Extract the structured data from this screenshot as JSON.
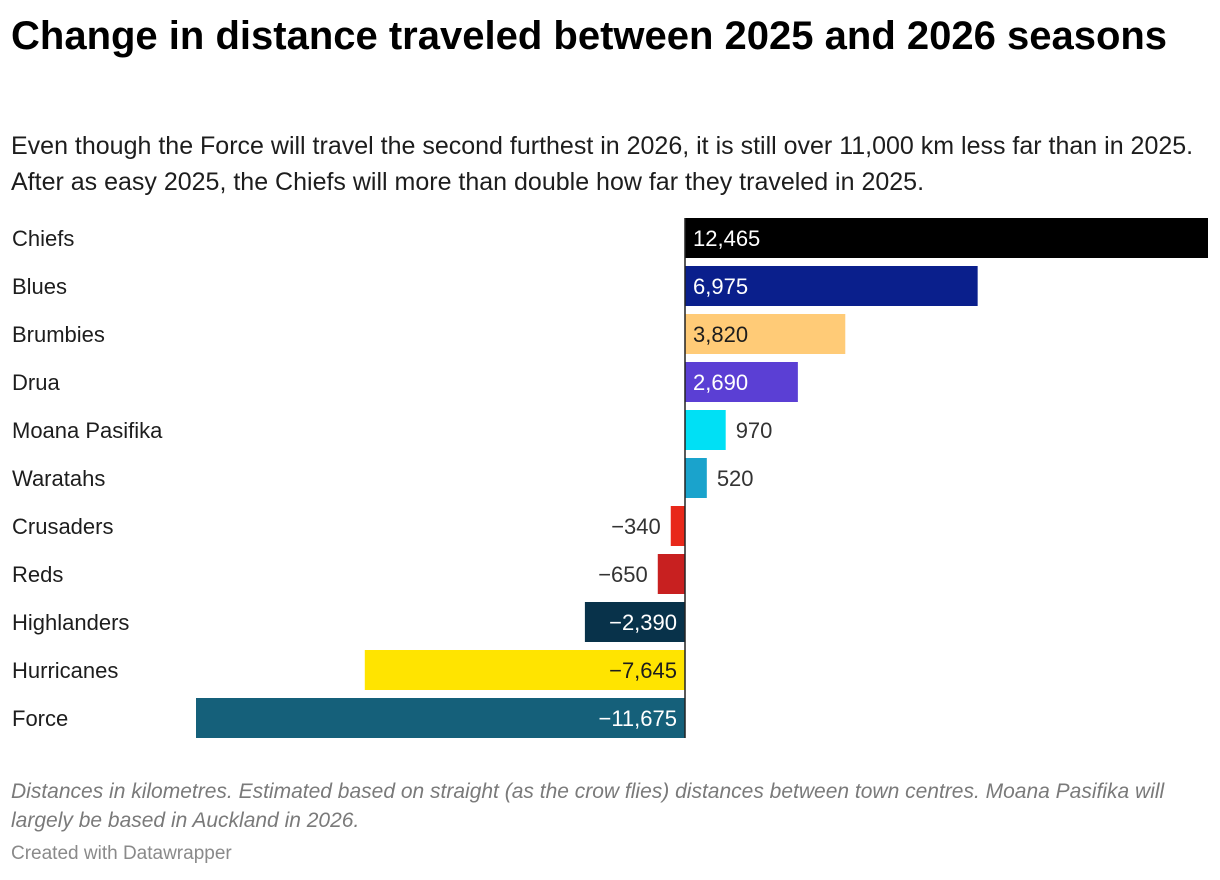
{
  "title": "Change in distance traveled between 2025 and 2026 seasons",
  "subtitle": "Even though the Force will travel the second furthest in 2026, it is still over 11,000 km less far than in 2025. After as easy 2025, the Chiefs will more than double how far they traveled in 2025.",
  "notes": "Distances in kilometres. Estimated based on straight (as the crow flies) distances between town centres. Moana Pasifika will largely be based in Auckland in 2026.",
  "credit": "Created with Datawrapper",
  "chart_data": {
    "type": "bar",
    "orientation": "horizontal",
    "categories": [
      "Chiefs",
      "Blues",
      "Brumbies",
      "Drua",
      "Moana Pasifika",
      "Waratahs",
      "Crusaders",
      "Reds",
      "Highlanders",
      "Hurricanes",
      "Force"
    ],
    "values": [
      12465,
      6975,
      3820,
      2690,
      970,
      520,
      -340,
      -650,
      -2390,
      -7645,
      -11675
    ],
    "value_labels": [
      "12,465",
      "6,975",
      "3,820",
      "2,690",
      "970",
      "520",
      "−340",
      "−650",
      "−2,390",
      "−7,645",
      "−11,675"
    ],
    "colors": [
      "#000000",
      "#0a1f8c",
      "#ffcb77",
      "#5b3fd4",
      "#00e0f5",
      "#1aa3cc",
      "#e8281a",
      "#c82020",
      "#08324a",
      "#ffe400",
      "#15607a"
    ],
    "label_colors": [
      "#ffffff",
      "#ffffff",
      "#1d1d1d",
      "#ffffff",
      "#333333",
      "#333333",
      "#333333",
      "#333333",
      "#ffffff",
      "#1d1d1d",
      "#ffffff"
    ],
    "xlim": [
      -11675,
      12465
    ],
    "unit": "km"
  }
}
